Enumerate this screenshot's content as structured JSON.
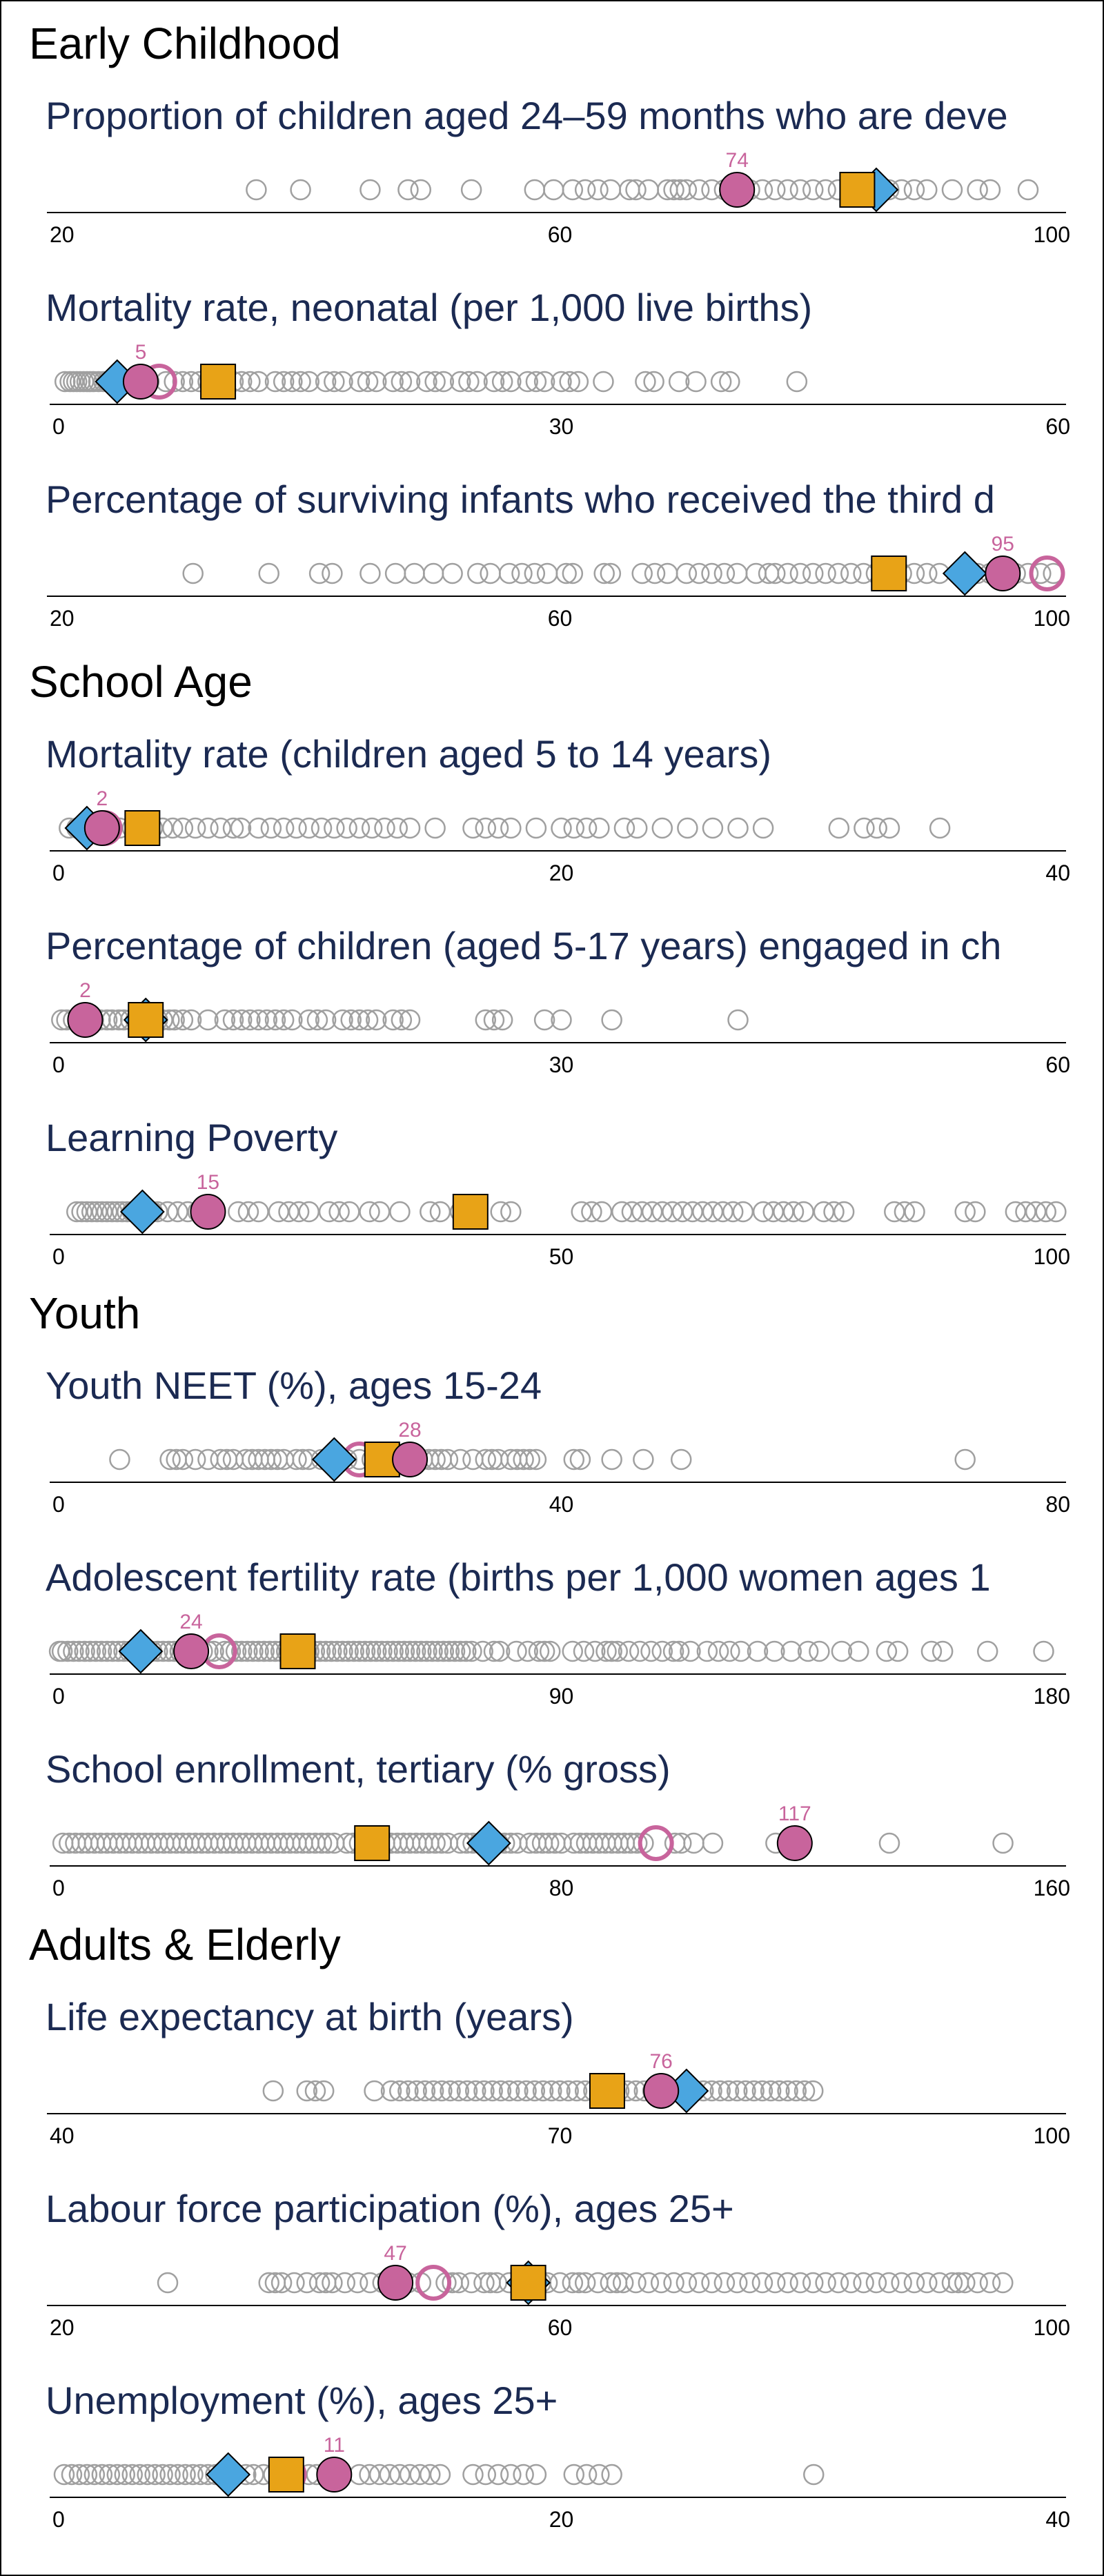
{
  "colors": {
    "country": "#c8649c",
    "country_ring": "#c8649c",
    "region": "#4aa6e0",
    "income_group": "#e8a317",
    "others": "#a0a0a0",
    "title": "#1b2a52",
    "axis": "#000000"
  },
  "chart_data": {
    "type": "scatter",
    "subtype": "dot-strip",
    "legend": "none",
    "grid": false,
    "sections": [
      {
        "title": "Early Childhood",
        "indicators": [
          {
            "title": "Proportion of children aged 24–59 months who are deve",
            "xlim": [
              20,
              100
            ],
            "ticks": [
              20,
              60,
              100
            ],
            "country": 74,
            "country_label": "74",
            "region": 85,
            "income_group": 83.5,
            "others": [
              36,
              39.5,
              45,
              48,
              49,
              53,
              58,
              59.5,
              61,
              62,
              63,
              64,
              65.5,
              66,
              67,
              68.5,
              69,
              69.5,
              70,
              71,
              72,
              73,
              74.5,
              75,
              76,
              77,
              78,
              79,
              80,
              81,
              82,
              83,
              84,
              85,
              86,
              87,
              88,
              89,
              91,
              93,
              94,
              97
            ]
          },
          {
            "title": "Mortality rate, neonatal (per 1,000 live births)",
            "xlim": [
              0,
              60
            ],
            "ticks": [
              0,
              30,
              60
            ],
            "country": 5,
            "country_label": "5",
            "country_ring": 6.1,
            "region": 3.6,
            "income_group": 9.6,
            "others": [
              0.5,
              0.8,
              1,
              1.2,
              1.4,
              1.6,
              1.8,
              2,
              2.2,
              2.5,
              2.8,
              3,
              3.5,
              4,
              4.5,
              5.5,
              6.5,
              7,
              7.5,
              8,
              8.5,
              9,
              10,
              10.5,
              11,
              11.5,
              12,
              13,
              13.5,
              14,
              14.5,
              15,
              16,
              16.5,
              17,
              18,
              18.5,
              19,
              20,
              20.5,
              21,
              22,
              22.5,
              23,
              24,
              24.5,
              25,
              26,
              26.5,
              27,
              28,
              28.5,
              29,
              30,
              30.5,
              31,
              32.5,
              35,
              35.5,
              37,
              38,
              39.5,
              40,
              44
            ]
          },
          {
            "title": "Percentage of surviving infants who received the third d",
            "xlim": [
              20,
              100
            ],
            "ticks": [
              20,
              60,
              100
            ],
            "country": 95,
            "country_label": "95",
            "country_ring": 98.5,
            "region": 92,
            "income_group": 86,
            "others": [
              31,
              37,
              41,
              42,
              45,
              47,
              48.5,
              50,
              51.5,
              53.5,
              54.5,
              56,
              57,
              58,
              59,
              60.5,
              61,
              63.5,
              64,
              66.5,
              67.5,
              68.5,
              70,
              71,
              72,
              73,
              74,
              75.5,
              76.5,
              77,
              78,
              79,
              80,
              81,
              82,
              83,
              84,
              85,
              87,
              88,
              89,
              90,
              93,
              94,
              96,
              97,
              98,
              99
            ]
          }
        ]
      },
      {
        "title": "School Age",
        "indicators": [
          {
            "title": "Mortality rate (children aged 5 to 14 years)",
            "xlim": [
              0,
              40
            ],
            "ticks": [
              0,
              20,
              40
            ],
            "country": 1.8,
            "country_label": "2",
            "country_ring": 1.9,
            "region": 1.2,
            "income_group": 3.4,
            "others": [
              0.5,
              0.8,
              1,
              1.4,
              2.5,
              3,
              3.8,
              4.2,
              4.6,
              5,
              5.5,
              6,
              6.5,
              7,
              7.3,
              8,
              8.5,
              9,
              9.5,
              10,
              10.5,
              11,
              11.5,
              12,
              12.5,
              13,
              13.5,
              14,
              15,
              16.5,
              17,
              17.5,
              18,
              19,
              20,
              20.5,
              21,
              21.5,
              22.5,
              23,
              24,
              25,
              26,
              27,
              28,
              31,
              32,
              32.5,
              33,
              35,
              45.5
            ]
          },
          {
            "title": "Percentage of children (aged 5-17 years) engaged in ch",
            "xlim": [
              0,
              60
            ],
            "ticks": [
              0,
              30,
              60
            ],
            "country": 1.7,
            "country_label": "2",
            "region": 5.3,
            "income_group": 5.3,
            "others": [
              0.3,
              0.6,
              1,
              1.3,
              2.2,
              2.6,
              3,
              3.3,
              3.7,
              4,
              4.4,
              4.7,
              6,
              6.3,
              6.7,
              7,
              7.5,
              8,
              9,
              10,
              10.5,
              11,
              11.5,
              12,
              12.5,
              13,
              13.5,
              14,
              15,
              15.5,
              16,
              17,
              17.5,
              18,
              18.5,
              19,
              20,
              20.5,
              21,
              25.5,
              26,
              26.5,
              29,
              30,
              33,
              40.5
            ]
          },
          {
            "title": "Learning Poverty",
            "xlim": [
              0,
              100
            ],
            "ticks": [
              0,
              50,
              100
            ],
            "country": 15,
            "country_label": "15",
            "region": 8.5,
            "income_group": 41,
            "others": [
              2,
              2.5,
              3,
              3.5,
              4,
              4.5,
              5,
              5.5,
              6,
              6.5,
              7,
              7.5,
              8,
              9,
              9.5,
              10,
              11,
              12,
              13,
              14,
              18,
              19,
              20,
              22,
              23,
              24,
              25,
              27,
              28,
              29,
              31,
              32,
              34,
              37,
              38,
              40,
              44,
              45,
              52,
              53,
              54,
              56,
              57,
              58,
              59,
              60,
              61,
              62,
              63,
              64,
              65,
              66,
              67,
              68,
              70,
              71,
              72,
              73,
              74,
              76,
              77,
              78,
              83,
              84,
              85,
              90,
              91,
              95,
              96,
              97,
              98,
              99
            ]
          }
        ]
      },
      {
        "title": "Youth",
        "indicators": [
          {
            "title": "Youth NEET (%), ages 15-24",
            "xlim": [
              0,
              80
            ],
            "ticks": [
              0,
              40,
              80
            ],
            "country": 28,
            "country_label": "28",
            "country_ring": 24,
            "region": 22,
            "income_group": 25.8,
            "others": [
              5,
              9,
              9.5,
              10,
              11,
              12,
              13,
              13.5,
              14,
              15,
              15.5,
              16,
              16.5,
              17,
              17.5,
              18,
              19,
              19.5,
              20,
              21,
              22,
              23,
              24,
              25,
              26,
              27,
              29,
              29.5,
              30,
              30.5,
              31,
              32,
              33,
              34,
              34.5,
              35,
              36,
              36.5,
              37,
              37.5,
              38,
              41,
              41.5,
              44,
              46.5,
              49.5,
              72
            ]
          },
          {
            "title": "Adolescent fertility rate (births per 1,000 women ages 1",
            "xlim": [
              0,
              180
            ],
            "ticks": [
              0,
              90,
              180
            ],
            "country": 24,
            "country_label": "24",
            "country_ring": 29,
            "region": 15,
            "income_group": 43,
            "others": [
              0.5,
              1,
              2,
              3,
              4,
              5,
              6,
              7,
              8,
              9,
              10,
              11,
              12,
              13,
              14,
              16,
              17,
              18,
              19,
              20,
              21,
              22,
              23,
              25,
              26,
              27,
              28,
              30,
              31,
              32,
              33,
              34,
              35,
              36,
              37,
              38,
              39,
              40,
              41,
              42,
              44,
              45,
              46,
              47,
              48,
              49,
              50,
              51,
              52,
              53,
              54,
              55,
              56,
              57,
              58,
              59,
              60,
              61,
              62,
              63,
              64,
              65,
              66,
              67,
              68,
              69,
              70,
              71,
              72,
              73,
              74,
              76,
              78,
              79,
              82,
              84,
              86,
              87,
              88,
              92,
              94,
              96,
              98,
              99,
              100,
              102,
              104,
              106,
              108,
              110,
              111,
              113,
              116,
              118,
              120,
              122,
              125,
              128,
              131,
              134,
              136,
              140,
              143,
              148,
              150,
              156,
              158,
              166,
              176
            ]
          },
          {
            "title": "School enrollment, tertiary (% gross)",
            "xlim": [
              0,
              160
            ],
            "ticks": [
              0,
              80,
              160
            ],
            "country": 117,
            "country_label": "117",
            "country_ring": 95,
            "region": 68.5,
            "income_group": 50,
            "others": [
              1,
              2,
              3,
              4,
              5,
              6,
              7,
              8,
              9,
              10,
              11,
              12,
              13,
              14,
              15,
              16,
              17,
              18,
              19,
              20,
              21,
              22,
              23,
              24,
              25,
              26,
              27,
              28,
              29,
              30,
              31,
              32,
              33,
              34,
              35,
              36,
              37,
              38,
              39,
              40,
              41,
              42,
              43,
              44,
              46,
              47,
              48,
              52,
              53,
              54,
              55,
              56,
              57,
              58,
              59,
              60,
              61,
              62,
              64,
              65,
              66,
              67,
              70,
              71,
              72,
              73,
              75,
              76,
              77,
              78,
              79,
              80,
              82,
              83,
              84,
              85,
              86,
              87,
              88,
              89,
              90,
              91,
              92,
              93,
              98,
              99,
              101,
              104,
              114,
              132,
              150
            ]
          }
        ]
      },
      {
        "title": "Adults & Elderly",
        "indicators": [
          {
            "title": "Life expectancy at birth (years)",
            "xlim": [
              40,
              100
            ],
            "ticks": [
              40,
              70,
              100
            ],
            "country": 76,
            "country_label": "76",
            "region": 77.5,
            "income_group": 72.8,
            "others": [
              53,
              55,
              55.5,
              56,
              59,
              60,
              60.5,
              61,
              61.5,
              62,
              62.5,
              63,
              63.5,
              64,
              64.5,
              65,
              65.5,
              66,
              66.5,
              67,
              67.5,
              68,
              68.5,
              69,
              69.5,
              70,
              70.5,
              71,
              71.5,
              72,
              73,
              73.5,
              74,
              74.5,
              75,
              75.5,
              76.5,
              77,
              78,
              78.5,
              79,
              79.5,
              80,
              80.5,
              81,
              81.5,
              82,
              82.5,
              83,
              83.5,
              84,
              84.5,
              85
            ]
          },
          {
            "title": "Labour force participation (%), ages 25+",
            "xlim": [
              20,
              100
            ],
            "ticks": [
              20,
              60,
              100
            ],
            "country": 47,
            "country_label": "47",
            "country_ring": 50,
            "region": 57.5,
            "income_group": 57.5,
            "others": [
              29,
              37,
              37.5,
              38,
              39,
              40,
              41,
              41.5,
              42,
              43,
              44,
              45,
              46,
              48,
              49,
              51,
              51.5,
              52,
              53,
              54,
              54.5,
              55,
              56,
              57,
              58,
              58.5,
              59,
              60,
              61,
              61.5,
              62,
              63,
              64,
              64.5,
              65,
              66,
              67,
              68,
              69,
              70,
              71,
              72,
              73,
              74,
              75,
              76,
              77,
              78,
              79,
              80,
              81,
              82,
              83,
              84,
              85,
              86,
              87,
              88,
              89,
              90,
              91,
              91.5,
              92,
              93,
              94,
              95
            ]
          },
          {
            "title": "Unemployment (%), ages 25+",
            "xlim": [
              0,
              40
            ],
            "ticks": [
              0,
              20,
              40
            ],
            "country": 11,
            "country_label": "11",
            "country_ring": 9.2,
            "region": 6.8,
            "income_group": 9.1,
            "others": [
              0.3,
              0.6,
              0.9,
              1.2,
              1.5,
              1.8,
              2.1,
              2.4,
              2.7,
              3,
              3.3,
              3.6,
              3.9,
              4.2,
              4.5,
              4.8,
              5.1,
              5.4,
              5.7,
              6,
              6.3,
              7.5,
              7.8,
              8.2,
              8.6,
              9.5,
              10,
              10.3,
              12,
              12.4,
              12.8,
              13.2,
              13.6,
              14,
              14.4,
              14.8,
              15.2,
              16.5,
              17,
              17.5,
              18,
              18.5,
              19,
              20.5,
              21,
              21.5,
              22,
              30
            ]
          }
        ]
      }
    ]
  }
}
